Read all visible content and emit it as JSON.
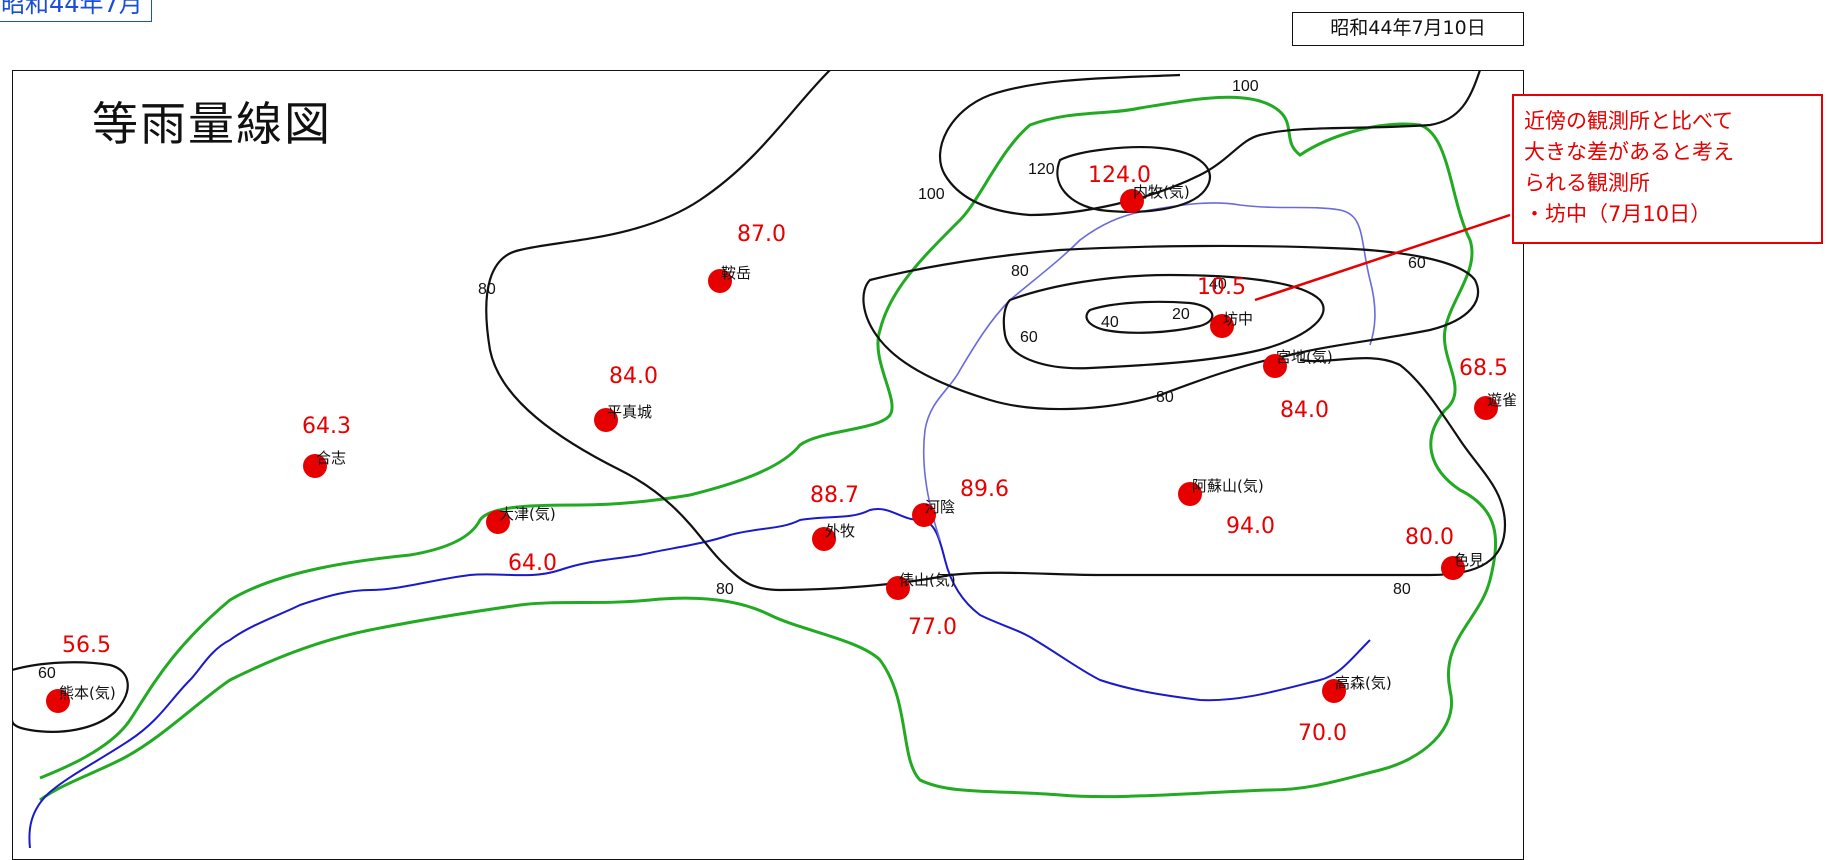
{
  "header": {
    "corner_tag": "昭和44年7月",
    "date": "昭和44年7月10日"
  },
  "map": {
    "title": "等雨量線図",
    "colors": {
      "isohyet": "#111111",
      "basin_boundary": "#22aa22",
      "river": "#1a1acc",
      "station": "#e60000",
      "rainfall_value": "#e60000",
      "callout": "#e60000"
    },
    "isohyet_labels": [
      "100",
      "100",
      "120",
      "80",
      "80",
      "80",
      "60",
      "60",
      "60",
      "40",
      "40",
      "20",
      "80",
      "80",
      "80"
    ],
    "stations": [
      {
        "name": "内牧(気)",
        "value": "124.0"
      },
      {
        "name": "鞍岳",
        "value": "87.0"
      },
      {
        "name": "坊中",
        "value": "10.5"
      },
      {
        "name": "宮地(気)",
        "value": "84.0"
      },
      {
        "name": "平真城",
        "value": "84.0"
      },
      {
        "name": "合志",
        "value": "64.3"
      },
      {
        "name": "遊雀",
        "value": "68.5"
      },
      {
        "name": "大津(気)",
        "value": "64.0"
      },
      {
        "name": "外牧",
        "value": "88.7"
      },
      {
        "name": "河陰",
        "value": "89.6"
      },
      {
        "name": "阿蘇山(気)",
        "value": "94.0"
      },
      {
        "name": "俵山(気)",
        "value": "77.0"
      },
      {
        "name": "色見",
        "value": "80.0"
      },
      {
        "name": "熊本(気)",
        "value": "56.5"
      },
      {
        "name": "高森(気)",
        "value": "70.0"
      }
    ],
    "callout": {
      "lines": [
        "近傍の観測所と比べて",
        "大きな差があると考え",
        "られる観測所",
        "・坊中（7月10日）"
      ]
    }
  }
}
